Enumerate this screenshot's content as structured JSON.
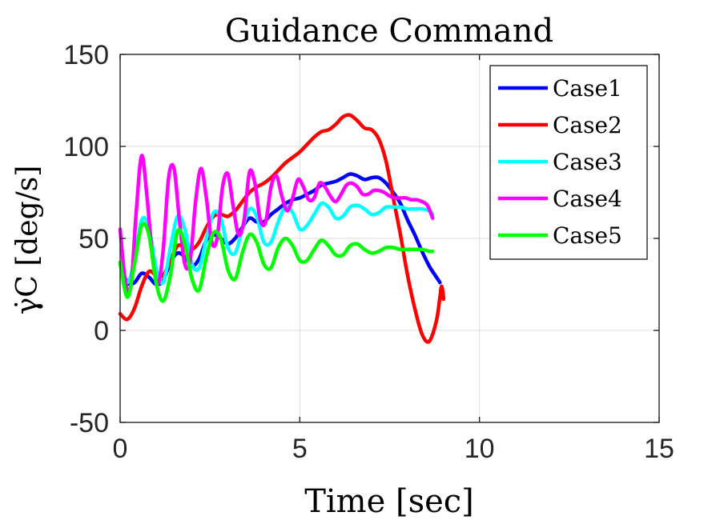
{
  "chart_data": {
    "type": "line",
    "title": "Guidance Command",
    "xlabel": "Time [sec]",
    "ylabel": "γ̇C [deg/s]",
    "xlim": [
      0,
      15
    ],
    "ylim": [
      -50,
      150
    ],
    "xticks": [
      0,
      5,
      10,
      15
    ],
    "yticks": [
      -50,
      0,
      50,
      100,
      150
    ],
    "xtick_labels": [
      "0",
      "5",
      "10",
      "15"
    ],
    "ytick_labels": [
      "-50",
      "0",
      "50",
      "100",
      "150"
    ],
    "grid": true,
    "legend_position": "top-right",
    "series": [
      {
        "name": "Case1",
        "color": "#0000FF",
        "x": [
          0,
          0.2,
          0.4,
          0.6,
          0.8,
          1.0,
          1.2,
          1.4,
          1.6,
          1.8,
          2.0,
          2.2,
          2.4,
          2.6,
          2.8,
          3.0,
          3.2,
          3.4,
          3.6,
          3.8,
          4.0,
          4.2,
          4.4,
          4.6,
          4.8,
          5.0,
          5.2,
          5.4,
          5.6,
          5.8,
          6.0,
          6.2,
          6.4,
          6.6,
          6.8,
          7.0,
          7.2,
          7.4,
          7.6,
          7.8,
          8.0,
          8.2,
          8.4,
          8.6,
          8.8,
          8.9
        ],
        "y": [
          36,
          26,
          26,
          31,
          29,
          25,
          27,
          37,
          42,
          40,
          35,
          39,
          49,
          52,
          50,
          47,
          50,
          56,
          61,
          59,
          59,
          63,
          66,
          69,
          71,
          72,
          74,
          76,
          79,
          80,
          81,
          83,
          85,
          84,
          82,
          83,
          83,
          80,
          75,
          69,
          60,
          52,
          43,
          35,
          29,
          26
        ]
      },
      {
        "name": "Case2",
        "color": "#FF0000",
        "x": [
          0,
          0.2,
          0.4,
          0.6,
          0.8,
          1.0,
          1.2,
          1.4,
          1.6,
          1.8,
          2.0,
          2.2,
          2.4,
          2.6,
          2.8,
          3.0,
          3.2,
          3.4,
          3.6,
          3.8,
          4.0,
          4.2,
          4.4,
          4.6,
          4.8,
          5.0,
          5.2,
          5.4,
          5.6,
          5.8,
          6.0,
          6.2,
          6.4,
          6.6,
          6.8,
          7.0,
          7.2,
          7.4,
          7.6,
          7.8,
          8.0,
          8.2,
          8.4,
          8.6,
          8.8,
          8.9,
          8.95,
          9.0,
          8.92
        ],
        "y": [
          9,
          6,
          12,
          24,
          32,
          30,
          30,
          38,
          46,
          45,
          44,
          48,
          56,
          62,
          63,
          62,
          65,
          70,
          75,
          78,
          80,
          83,
          87,
          91,
          94,
          97,
          101,
          105,
          108,
          109,
          112,
          116,
          117,
          114,
          110,
          109,
          104,
          92,
          72,
          52,
          30,
          12,
          -2,
          -6,
          5,
          18,
          24,
          17,
          22
        ]
      },
      {
        "name": "Case3",
        "color": "#00FFFF",
        "x": [
          0,
          0.2,
          0.4,
          0.6,
          0.8,
          1.0,
          1.2,
          1.4,
          1.6,
          1.8,
          2.0,
          2.2,
          2.4,
          2.6,
          2.8,
          3.0,
          3.2,
          3.4,
          3.6,
          3.8,
          4.0,
          4.2,
          4.4,
          4.6,
          4.8,
          5.0,
          5.2,
          5.4,
          5.6,
          5.8,
          6.0,
          6.2,
          6.4,
          6.6,
          6.8,
          7.0,
          7.2,
          7.4,
          7.6,
          7.8,
          8.0,
          8.2,
          8.4,
          8.6,
          8.7
        ],
        "y": [
          36,
          26,
          38,
          60,
          56,
          34,
          26,
          45,
          62,
          55,
          36,
          34,
          50,
          64,
          61,
          45,
          42,
          55,
          66,
          62,
          48,
          48,
          59,
          67,
          64,
          55,
          57,
          63,
          69,
          67,
          61,
          62,
          67,
          68,
          66,
          63,
          64,
          67,
          67,
          67,
          66,
          66,
          66,
          65,
          63
        ]
      },
      {
        "name": "Case4",
        "color": "#FF00FF",
        "x": [
          0,
          0.15,
          0.3,
          0.45,
          0.6,
          0.75,
          0.9,
          1.05,
          1.2,
          1.35,
          1.5,
          1.65,
          1.8,
          1.95,
          2.1,
          2.25,
          2.4,
          2.55,
          2.7,
          2.85,
          3.0,
          3.15,
          3.3,
          3.45,
          3.6,
          3.75,
          3.9,
          4.05,
          4.2,
          4.35,
          4.5,
          4.65,
          4.8,
          4.95,
          5.1,
          5.25,
          5.4,
          5.55,
          5.7,
          5.85,
          6.0,
          6.15,
          6.3,
          6.45,
          6.6,
          6.75,
          6.9,
          7.05,
          7.2,
          7.35,
          7.5,
          7.65,
          7.8,
          7.95,
          8.1,
          8.25,
          8.4,
          8.55,
          8.7
        ],
        "y": [
          55,
          26,
          24,
          65,
          95,
          72,
          40,
          25,
          44,
          83,
          88,
          60,
          36,
          38,
          70,
          88,
          72,
          48,
          50,
          78,
          85,
          67,
          52,
          60,
          86,
          80,
          60,
          59,
          78,
          84,
          73,
          65,
          72,
          82,
          78,
          71,
          72,
          80,
          78,
          73,
          70,
          74,
          79,
          80,
          78,
          74,
          74,
          76,
          76,
          75,
          73,
          72,
          72,
          72,
          71,
          71,
          70,
          68,
          61
        ]
      },
      {
        "name": "Case5",
        "color": "#00FF00",
        "x": [
          0,
          0.2,
          0.4,
          0.6,
          0.8,
          1.0,
          1.2,
          1.4,
          1.6,
          1.8,
          2.0,
          2.2,
          2.4,
          2.6,
          2.8,
          3.0,
          3.2,
          3.4,
          3.6,
          3.8,
          4.0,
          4.2,
          4.4,
          4.6,
          4.8,
          5.0,
          5.2,
          5.4,
          5.6,
          5.8,
          6.0,
          6.2,
          6.4,
          6.6,
          6.8,
          7.0,
          7.2,
          7.4,
          7.6,
          7.8,
          8.0,
          8.2,
          8.4,
          8.6,
          8.7
        ],
        "y": [
          37,
          18,
          36,
          57,
          52,
          26,
          16,
          30,
          54,
          47,
          28,
          22,
          40,
          53,
          50,
          33,
          28,
          42,
          52,
          48,
          36,
          34,
          45,
          50,
          46,
          38,
          38,
          44,
          49,
          46,
          41,
          41,
          46,
          47,
          44,
          42,
          43,
          45,
          45,
          44,
          44,
          44,
          44,
          43,
          43
        ]
      }
    ]
  }
}
